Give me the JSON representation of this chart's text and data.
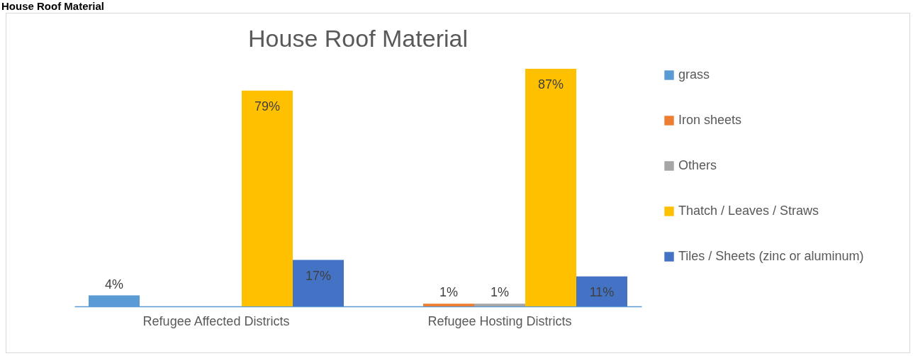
{
  "chart_data": {
    "type": "bar",
    "title": "House Roof Material",
    "annotations": [
      "House Roof Material"
    ],
    "categories": [
      "Refugee Affected Districts",
      "Refugee Hosting Districts"
    ],
    "series": [
      {
        "name": "grass",
        "color": "#5b9bd5",
        "values": [
          4,
          null
        ],
        "value_labels": [
          "4%",
          null
        ]
      },
      {
        "name": "Iron sheets",
        "color": "#ed7d31",
        "values": [
          null,
          1
        ],
        "value_labels": [
          null,
          "1%"
        ]
      },
      {
        "name": "Others",
        "color": "#a5a5a5",
        "values": [
          null,
          1
        ],
        "value_labels": [
          null,
          "1%"
        ]
      },
      {
        "name": "Thatch / Leaves / Straws",
        "color": "#ffc000",
        "values": [
          79,
          87
        ],
        "value_labels": [
          "79%",
          "87%"
        ]
      },
      {
        "name": "Tiles / Sheets (zinc or aluminum)",
        "color": "#4472c4",
        "values": [
          17,
          11
        ],
        "value_labels": [
          "17%",
          "11%"
        ]
      }
    ],
    "legend": "right"
  }
}
